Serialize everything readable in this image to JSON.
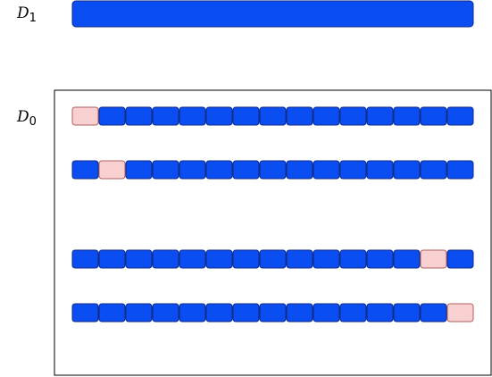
{
  "labels": {
    "d1": {
      "base": "D",
      "sub": "1"
    },
    "d0": {
      "base": "D",
      "sub": "0"
    }
  },
  "colors": {
    "cell_fill": "#0a4df0",
    "cell_stroke": "#102a8a",
    "highlight_fill": "#f8d0d0",
    "highlight_stroke": "#b06060",
    "box_stroke": "#000000"
  },
  "d0_rows": [
    {
      "cells": 15,
      "highlight_index": 0
    },
    {
      "cells": 15,
      "highlight_index": 1
    },
    {
      "cells": 15,
      "highlight_index": 13
    },
    {
      "cells": 15,
      "highlight_index": 14
    }
  ]
}
